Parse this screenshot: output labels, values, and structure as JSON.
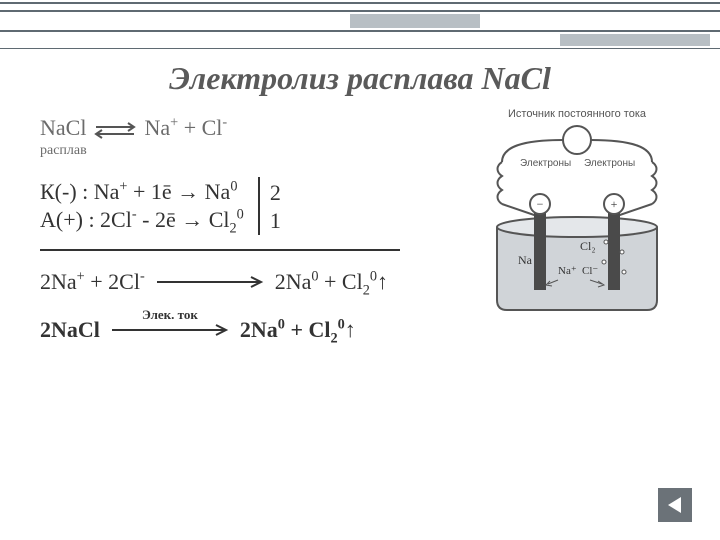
{
  "title": "Электролиз расплава NaCl",
  "dissociation": {
    "left": "NaCl",
    "right_html": "Na<sup>+</sup> +  Cl<sup>-</sup>",
    "sub_label": "расплав"
  },
  "half": {
    "cathode_html": "К(-) :  Na<sup>+</sup> + 1ē → Na<sup>0</sup>",
    "anode_html": "А(+) :  2Cl<sup>-</sup>  - 2ē → Cl<sub>2</sub><sup>0</sup>",
    "mult_top": "2",
    "mult_bottom": "1"
  },
  "sum": {
    "left_html": "2Na<sup>+</sup> + 2Cl<sup>-</sup>",
    "right_html": "2Na<sup>0</sup> + Cl<sub>2</sub><sup>0</sup>↑"
  },
  "net": {
    "left_html": "2NaCl",
    "arrow_label": "Элек. ток",
    "right_html": "2Na<sup>0</sup> + Cl<sub>2</sub><sup>0</sup>↑"
  },
  "figure": {
    "caption_top": "Источник постоянного тока",
    "electrons_label": "Электроны",
    "na": "Na",
    "cl2": "Cl₂",
    "na_plus": "Na⁺",
    "cl_minus": "Cl⁻",
    "minus": "−",
    "plus": "+",
    "colors": {
      "stroke": "#555555",
      "vessel_fill": "#d0d4d8",
      "electrode": "#4a4a4a",
      "source_fill": "#ffffff"
    }
  },
  "deco": {
    "line_color": "#5f6a72",
    "block_color": "#b8bfc4"
  },
  "nav": {
    "icon": "triangle-left",
    "bg": "#6b7278",
    "fg": "#ffffff"
  }
}
